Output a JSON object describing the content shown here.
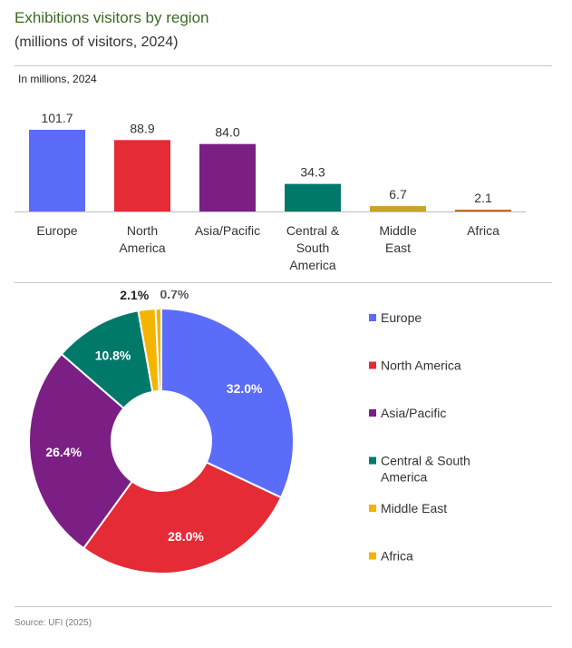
{
  "header": {
    "title": "Exhibitions visitors by region",
    "subtitle": "(millions of visitors, 2024)",
    "unit_note": "In millions, 2024"
  },
  "chart_data": [
    {
      "type": "bar",
      "categories": [
        [
          "Europe"
        ],
        [
          "North",
          "America"
        ],
        [
          "Asia/Pacific"
        ],
        [
          "Central &",
          "South",
          "America"
        ],
        [
          "Middle",
          "East"
        ],
        [
          "Africa"
        ]
      ],
      "values": [
        101.7,
        88.9,
        84.0,
        34.3,
        6.7,
        2.1
      ],
      "value_labels": [
        "101.7",
        "88.9",
        "84.0",
        "34.3",
        "6.7",
        "2.1"
      ],
      "colors": [
        "#5b6cf9",
        "#e52b36",
        "#7b1f85",
        "#00796b",
        "#c9a227",
        "#b5651d"
      ],
      "ylim": [
        0,
        101.7
      ]
    },
    {
      "type": "pie",
      "hole": true,
      "labels": [
        "Europe",
        "North America",
        "Asia/Pacific",
        "Central & South America",
        "Middle East",
        "Africa"
      ],
      "values": [
        32.0,
        28.0,
        26.4,
        10.8,
        2.1,
        0.7
      ],
      "value_labels": [
        "32.0%",
        "28.0%",
        "26.4%",
        "10.8%",
        "2.1%",
        "0.7%"
      ],
      "colors": [
        "#5b6cf9",
        "#e52b36",
        "#7b1f85",
        "#00796b",
        "#f5b400",
        "#f5b400"
      ],
      "legend_position": "right"
    }
  ],
  "legend": {
    "items": [
      [
        "Europe"
      ],
      [
        "North America"
      ],
      [
        "Asia/Pacific"
      ],
      [
        "Central & South",
        "America"
      ],
      [
        "Middle East"
      ],
      [
        "Africa"
      ]
    ]
  },
  "footer": {
    "source": "Source: UFI (2025)"
  }
}
